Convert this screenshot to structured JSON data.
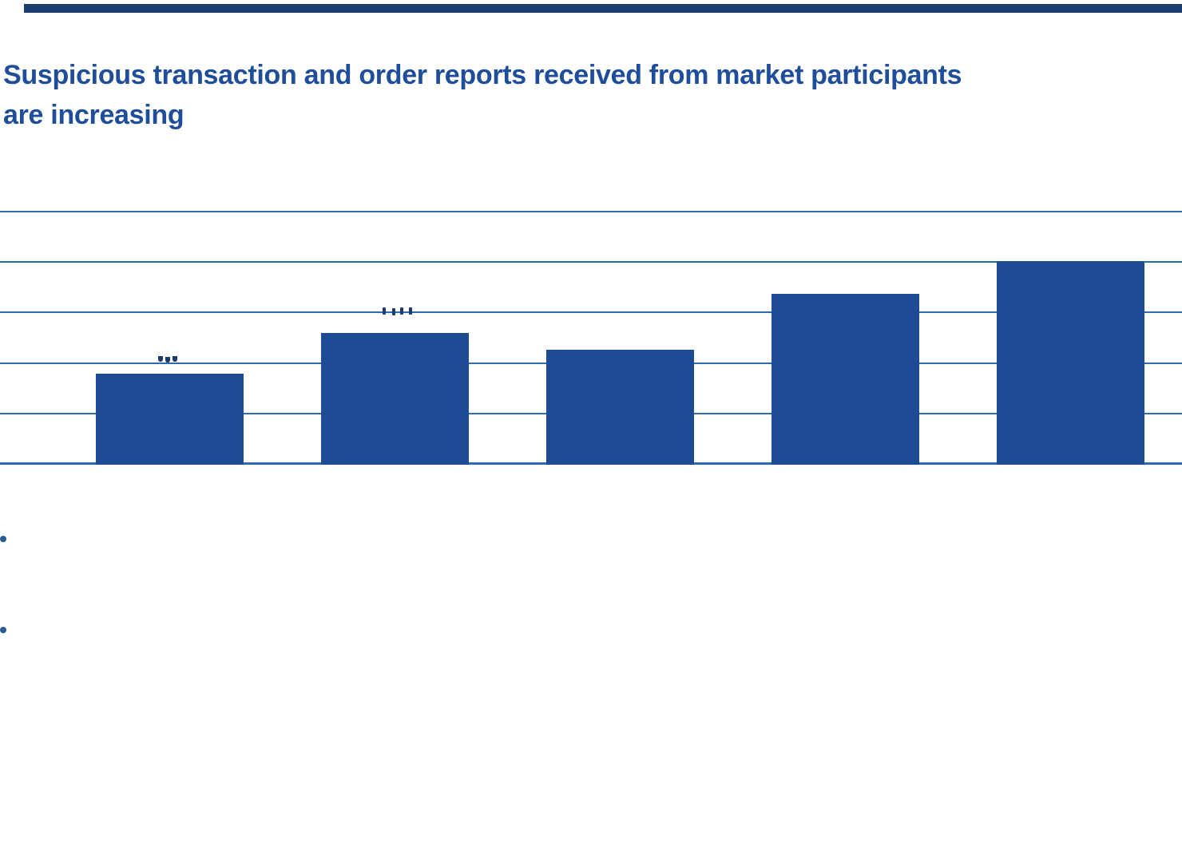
{
  "page": {
    "background": "#ffffff",
    "top_rule_color": "#1c3e6e",
    "title_line1": "Suspicious transaction and order reports received from market participants",
    "title_line2": "are increasing",
    "title_color": "#1e4d99"
  },
  "chart_data": {
    "type": "bar",
    "title": "Suspicious transaction and order reports received from market participants are increasing",
    "categories": [
      "",
      "",
      "",
      "",
      ""
    ],
    "values": [
      1790,
      2600,
      2260,
      3370,
      4020
    ],
    "xlabel": "",
    "ylabel": "",
    "ylim": [
      0,
      5000
    ],
    "grid": true,
    "gridline_values": [
      1000,
      2000,
      3000,
      4000,
      5000
    ],
    "axis_tick_labels_visible": false,
    "legend": "none",
    "bar_color": "#1d4c94",
    "gridline_color": "#2d6cb5",
    "axis_color": "#2d6cb5",
    "data_label_fragment_color": "#1a3a70",
    "data_label_fragments": [
      "above-bar-1",
      "above-bar-2"
    ]
  },
  "bullets": {
    "count": 2,
    "color": "#2a5c9c"
  }
}
